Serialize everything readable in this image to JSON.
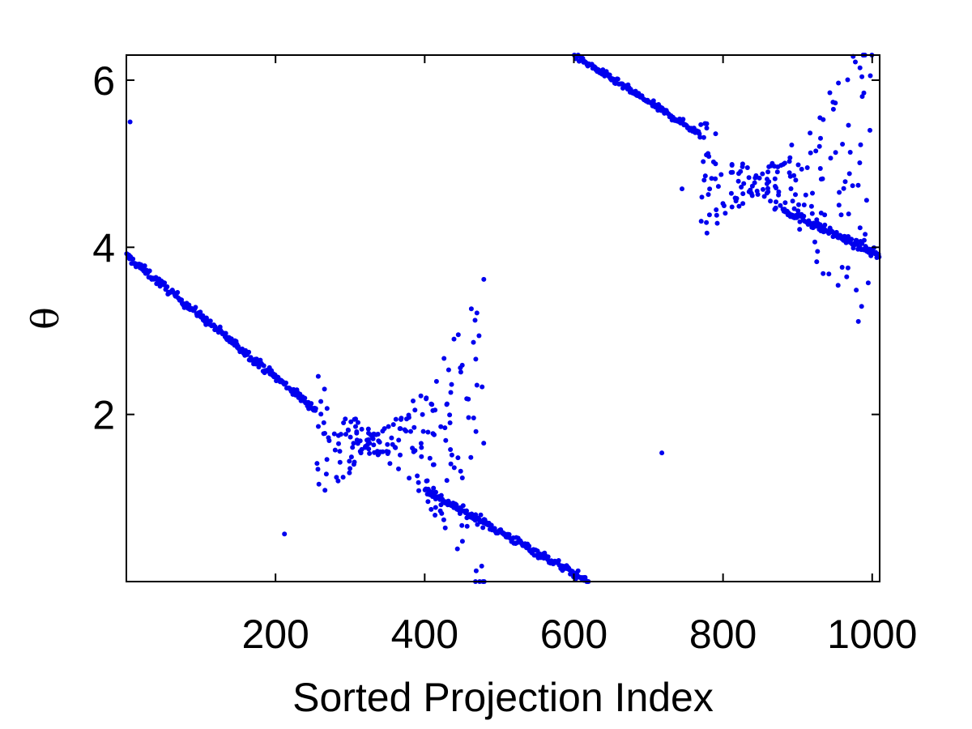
{
  "chart_data": {
    "type": "scatter",
    "title": "",
    "xlabel": "Sorted Projection Index",
    "ylabel": "θ",
    "xlim": [
      0,
      1010
    ],
    "ylim": [
      0,
      6.3
    ],
    "xticks": [
      200,
      400,
      600,
      800,
      1000
    ],
    "yticks": [
      2,
      4,
      6
    ],
    "grid": false,
    "legend": "none",
    "marker_color": "#0000ee",
    "series": [
      {
        "segments": [
          {
            "x_start": 0,
            "x_end": 255,
            "y_start": 3.9,
            "y_end": 2.05,
            "n": 240,
            "jitter": 0.05
          },
          {
            "x_start": 400,
            "x_end": 620,
            "y_start": 1.1,
            "y_end": 0.0,
            "n": 210,
            "jitter": 0.05
          },
          {
            "x_start": 600,
            "x_end": 770,
            "y_start": 6.3,
            "y_end": 5.35,
            "n": 150,
            "jitter": 0.04
          },
          {
            "x_start": 880,
            "x_end": 1010,
            "y_start": 4.45,
            "y_end": 3.9,
            "n": 120,
            "jitter": 0.05
          }
        ],
        "scatter_clusters": [
          {
            "x_range": [
              255,
              480
            ],
            "center_x": 335,
            "center_y": 1.65,
            "n": 200,
            "spread_y": 0.4
          },
          {
            "x_range": [
              770,
              1000
            ],
            "center_x": 845,
            "center_y": 4.75,
            "n": 180,
            "spread_y": 0.45
          }
        ],
        "outliers": [
          {
            "x": 5,
            "y": 5.5
          },
          {
            "x": 212,
            "y": 0.57
          },
          {
            "x": 718,
            "y": 1.54
          },
          {
            "x": 477,
            "y": 2.33
          },
          {
            "x": 470,
            "y": 2.35
          },
          {
            "x": 745,
            "y": 4.7
          },
          {
            "x": 930,
            "y": 5.55
          },
          {
            "x": 997,
            "y": 5.4
          }
        ]
      }
    ]
  }
}
